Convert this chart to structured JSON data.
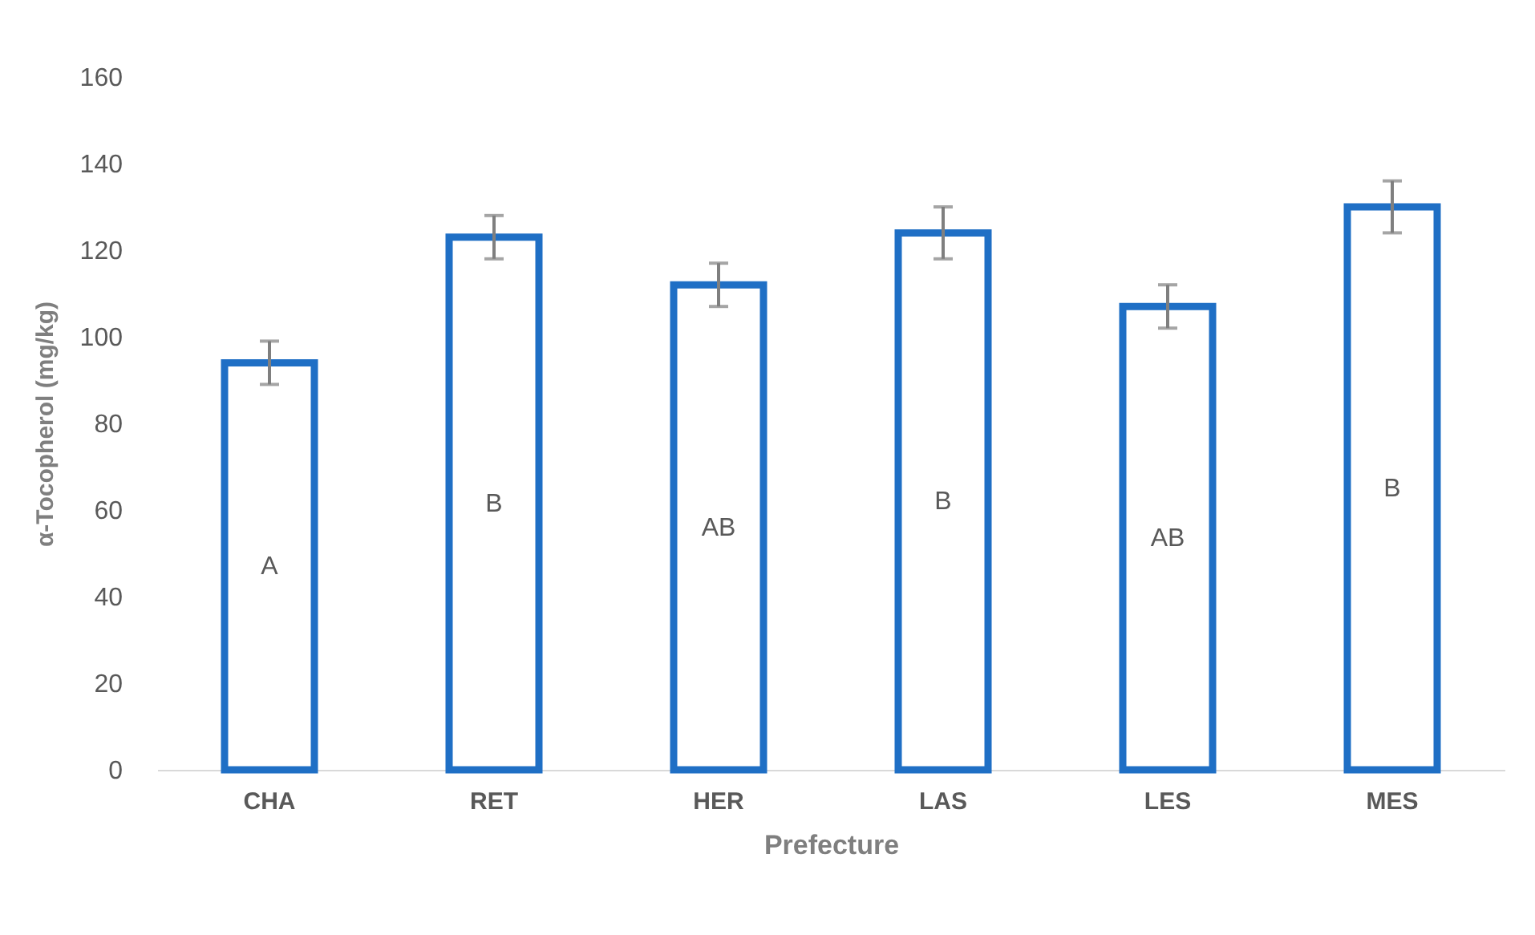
{
  "chart_data": {
    "type": "bar",
    "xlabel": "Prefecture",
    "ylabel": "α-Tocopherol (mg/kg)",
    "categories": [
      "CHA",
      "RET",
      "HER",
      "LAS",
      "LES",
      "MES"
    ],
    "values": [
      94,
      123,
      112,
      124,
      107,
      130
    ],
    "errors": [
      5,
      5,
      5,
      6,
      5,
      6
    ],
    "color": "#1f6fc5",
    "ylim": [
      0,
      160
    ],
    "yticks": [
      0,
      20,
      40,
      60,
      80,
      100,
      120,
      140,
      160
    ],
    "grid": false,
    "annotations": [
      "A",
      "B",
      "AB",
      "B",
      "AB",
      "B"
    ]
  }
}
